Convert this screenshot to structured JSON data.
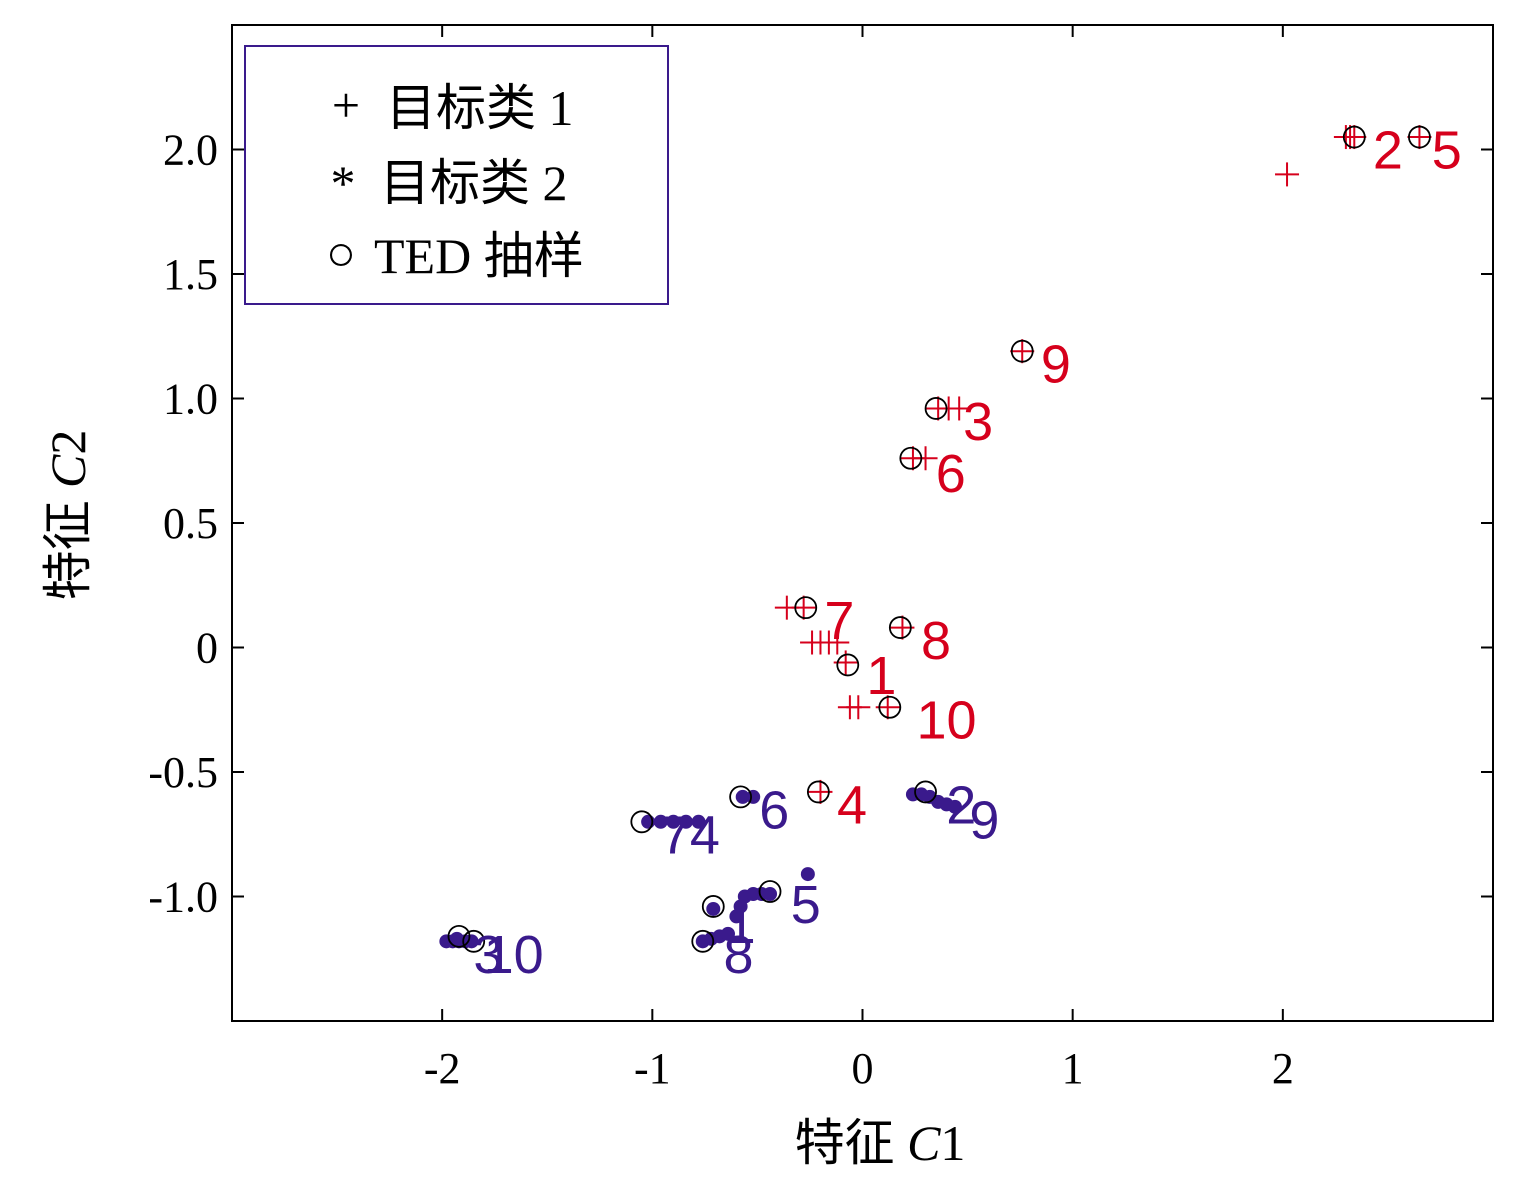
{
  "chart_data": {
    "type": "scatter",
    "title": "",
    "xlabel": {
      "prefix": "特征 ",
      "var": "C",
      "suffix": "1"
    },
    "ylabel": {
      "prefix": "特征 ",
      "var": "C",
      "suffix": "2"
    },
    "xlim": [
      -3.0,
      3.0
    ],
    "ylim": [
      -1.5,
      2.5
    ],
    "x_ticks": [
      {
        "value": -2,
        "label": "-2"
      },
      {
        "value": -1,
        "label": "-1"
      },
      {
        "value": 0,
        "label": "0"
      },
      {
        "value": 1,
        "label": "1"
      },
      {
        "value": 2,
        "label": "2"
      }
    ],
    "y_ticks": [
      {
        "value": -1.0,
        "label": "-1.0"
      },
      {
        "value": -0.5,
        "label": "-0.5"
      },
      {
        "value": 0,
        "label": "0"
      },
      {
        "value": 0.5,
        "label": "0.5"
      },
      {
        "value": 1.0,
        "label": "1.0"
      },
      {
        "value": 1.5,
        "label": "1.5"
      },
      {
        "value": 2.0,
        "label": "2.0"
      }
    ],
    "grid": false,
    "legend": {
      "placement": "top-left",
      "entries": [
        {
          "symbol": "+",
          "label": "目标类 1",
          "color": "#d6001c"
        },
        {
          "symbol": "*",
          "label": "目标类 2",
          "color": "#3a1a8c"
        },
        {
          "symbol": "○",
          "label": "TED 抽样",
          "color": "#000000"
        }
      ]
    },
    "series": [
      {
        "name": "目标类 1",
        "marker": "plus",
        "color": "#d6001c",
        "points": [
          {
            "x": 2.02,
            "y": 1.9
          },
          {
            "x": 2.3,
            "y": 2.05
          },
          {
            "x": 2.32,
            "y": 2.05
          },
          {
            "x": 2.34,
            "y": 2.05
          },
          {
            "x": 2.65,
            "y": 2.05
          },
          {
            "x": 0.76,
            "y": 1.19
          },
          {
            "x": 0.36,
            "y": 0.96
          },
          {
            "x": 0.41,
            "y": 0.96
          },
          {
            "x": 0.46,
            "y": 0.96
          },
          {
            "x": 0.24,
            "y": 0.76
          },
          {
            "x": 0.3,
            "y": 0.76
          },
          {
            "x": -0.36,
            "y": 0.16
          },
          {
            "x": -0.28,
            "y": 0.16
          },
          {
            "x": 0.19,
            "y": 0.08
          },
          {
            "x": -0.24,
            "y": 0.02
          },
          {
            "x": -0.2,
            "y": 0.02
          },
          {
            "x": -0.16,
            "y": 0.02
          },
          {
            "x": -0.12,
            "y": 0.02
          },
          {
            "x": -0.08,
            "y": -0.06
          },
          {
            "x": -0.06,
            "y": -0.24
          },
          {
            "x": -0.02,
            "y": -0.24
          },
          {
            "x": 0.12,
            "y": -0.24
          },
          {
            "x": -0.2,
            "y": -0.58
          }
        ]
      },
      {
        "name": "目标类 2",
        "marker": "dot",
        "color": "#3a1a8c",
        "points": [
          {
            "x": -1.98,
            "y": -1.18
          },
          {
            "x": -1.95,
            "y": -1.18
          },
          {
            "x": -1.92,
            "y": -1.18
          },
          {
            "x": -1.89,
            "y": -1.18
          },
          {
            "x": -1.86,
            "y": -1.18
          },
          {
            "x": -1.93,
            "y": -1.17
          },
          {
            "x": -0.76,
            "y": -1.18
          },
          {
            "x": -0.72,
            "y": -1.17
          },
          {
            "x": -0.68,
            "y": -1.16
          },
          {
            "x": -0.64,
            "y": -1.15
          },
          {
            "x": -0.71,
            "y": -1.05
          },
          {
            "x": -0.6,
            "y": -1.08
          },
          {
            "x": -0.58,
            "y": -1.04
          },
          {
            "x": -0.56,
            "y": -1.0
          },
          {
            "x": -0.52,
            "y": -0.99
          },
          {
            "x": -0.48,
            "y": -0.99
          },
          {
            "x": -0.44,
            "y": -0.99
          },
          {
            "x": -0.26,
            "y": -0.91
          },
          {
            "x": -1.02,
            "y": -0.7
          },
          {
            "x": -0.96,
            "y": -0.7
          },
          {
            "x": -0.9,
            "y": -0.7
          },
          {
            "x": -0.84,
            "y": -0.7
          },
          {
            "x": -0.78,
            "y": -0.7
          },
          {
            "x": -0.57,
            "y": -0.6
          },
          {
            "x": -0.52,
            "y": -0.6
          },
          {
            "x": 0.24,
            "y": -0.59
          },
          {
            "x": 0.28,
            "y": -0.59
          },
          {
            "x": 0.32,
            "y": -0.6
          },
          {
            "x": 0.36,
            "y": -0.62
          },
          {
            "x": 0.4,
            "y": -0.63
          },
          {
            "x": 0.44,
            "y": -0.64
          }
        ]
      },
      {
        "name": "TED 抽样",
        "marker": "circle",
        "color": "#000000",
        "points": [
          {
            "x": 2.34,
            "y": 2.05
          },
          {
            "x": 2.65,
            "y": 2.05
          },
          {
            "x": 0.76,
            "y": 1.19
          },
          {
            "x": 0.35,
            "y": 0.96
          },
          {
            "x": 0.23,
            "y": 0.76
          },
          {
            "x": -0.27,
            "y": 0.16
          },
          {
            "x": 0.18,
            "y": 0.08
          },
          {
            "x": -0.07,
            "y": -0.07
          },
          {
            "x": 0.13,
            "y": -0.24
          },
          {
            "x": -0.21,
            "y": -0.58
          },
          {
            "x": -0.58,
            "y": -0.6
          },
          {
            "x": 0.3,
            "y": -0.58
          },
          {
            "x": -1.05,
            "y": -0.7
          },
          {
            "x": -0.71,
            "y": -1.04
          },
          {
            "x": -0.44,
            "y": -0.98
          },
          {
            "x": -1.92,
            "y": -1.16
          },
          {
            "x": -1.85,
            "y": -1.18
          },
          {
            "x": -0.76,
            "y": -1.18
          }
        ]
      }
    ],
    "annotations": [
      {
        "text": "2",
        "x": 2.5,
        "y": 2.0,
        "color": "#d6001c"
      },
      {
        "text": "5",
        "x": 2.78,
        "y": 2.0,
        "color": "#d6001c"
      },
      {
        "text": "9",
        "x": 0.92,
        "y": 1.14,
        "color": "#d6001c"
      },
      {
        "text": "3",
        "x": 0.55,
        "y": 0.91,
        "color": "#d6001c"
      },
      {
        "text": "6",
        "x": 0.42,
        "y": 0.7,
        "color": "#d6001c"
      },
      {
        "text": "7",
        "x": -0.11,
        "y": 0.11,
        "color": "#d6001c"
      },
      {
        "text": "8",
        "x": 0.35,
        "y": 0.03,
        "color": "#d6001c"
      },
      {
        "text": "1",
        "x": 0.09,
        "y": -0.11,
        "color": "#d6001c"
      },
      {
        "text": "10",
        "x": 0.4,
        "y": -0.29,
        "color": "#d6001c"
      },
      {
        "text": "4",
        "x": -0.05,
        "y": -0.63,
        "color": "#d6001c"
      },
      {
        "text": "6",
        "x": -0.42,
        "y": -0.65,
        "color": "#3a1a8c"
      },
      {
        "text": "2",
        "x": 0.47,
        "y": -0.63,
        "color": "#3a1a8c"
      },
      {
        "text": "9",
        "x": 0.58,
        "y": -0.69,
        "color": "#3a1a8c"
      },
      {
        "text": "7",
        "x": -0.89,
        "y": -0.75,
        "color": "#3a1a8c"
      },
      {
        "text": "4",
        "x": -0.75,
        "y": -0.75,
        "color": "#3a1a8c"
      },
      {
        "text": "5",
        "x": -0.27,
        "y": -1.03,
        "color": "#3a1a8c"
      },
      {
        "text": "1",
        "x": -0.58,
        "y": -1.11,
        "color": "#3a1a8c"
      },
      {
        "text": "8",
        "x": -0.59,
        "y": -1.23,
        "color": "#3a1a8c"
      },
      {
        "text": "3",
        "x": -1.78,
        "y": -1.23,
        "color": "#3a1a8c"
      },
      {
        "text": "10",
        "x": -1.66,
        "y": -1.23,
        "color": "#3a1a8c"
      }
    ]
  }
}
